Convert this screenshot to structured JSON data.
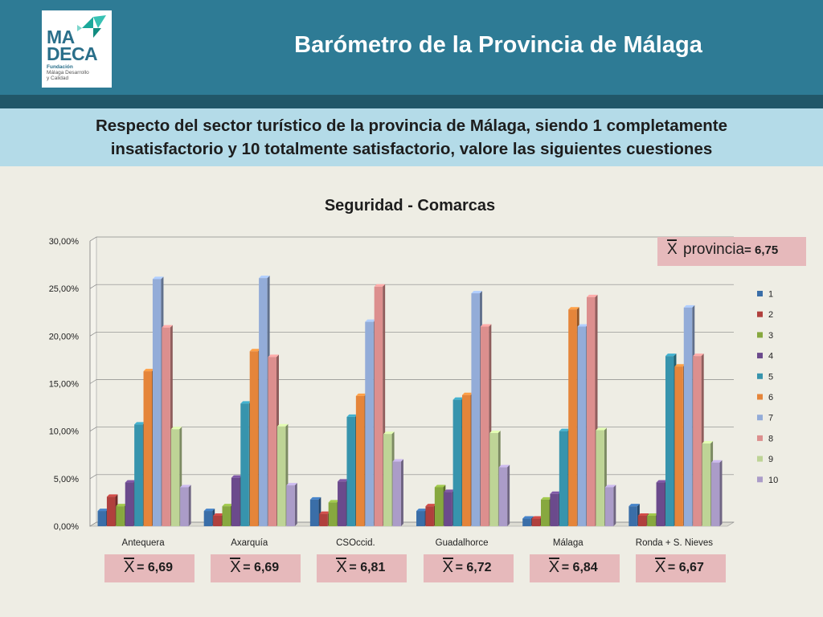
{
  "header": {
    "title": "Barómetro de la Provincia de Málaga",
    "logo": {
      "line1": "MA",
      "line2": "DECA",
      "org": "Fundación",
      "sub1": "Málaga Desarrollo",
      "sub2": "y Calidad"
    }
  },
  "question": {
    "line1": "Respecto del sector turístico de la provincia de Málaga, siendo 1 completamente",
    "line2": "insatisfactorio y 10 totalmente satisfactorio, valore las siguientes cuestiones"
  },
  "mean_symbol": "X",
  "province_mean": {
    "label": " provincia",
    "value": "= 6,75"
  },
  "colors": {
    "header": "#2e7b95",
    "strip": "#215769",
    "question_bg": "#b4dbe8",
    "page_bg": "#eeede4",
    "mean_bg": "#e6b9bb",
    "series": [
      "#3a6ea8",
      "#b0403d",
      "#87a83f",
      "#6b4a8c",
      "#3794ad",
      "#e5853a",
      "#93acd8",
      "#dc8f8e",
      "#bed496",
      "#ab9cc8"
    ]
  },
  "chart_data": {
    "type": "bar",
    "title": "Seguridad - Comarcas",
    "categories": [
      "Antequera",
      "Axarquía",
      "CSOccid.",
      "Guadalhorce",
      "Málaga",
      "Ronda + S. Nieves"
    ],
    "yticks": [
      "0,00%",
      "5,00%",
      "10,00%",
      "15,00%",
      "20,00%",
      "25,00%",
      "30,00%"
    ],
    "ylim": [
      0,
      30
    ],
    "grid": true,
    "legend_position": "right",
    "series": [
      {
        "name": "1",
        "values": [
          1.6,
          1.6,
          2.8,
          1.6,
          0.8,
          2.1
        ]
      },
      {
        "name": "2",
        "values": [
          3.1,
          1.1,
          1.3,
          2.1,
          0.8,
          1.1
        ]
      },
      {
        "name": "3",
        "values": [
          2.1,
          2.1,
          2.5,
          4.1,
          2.8,
          1.1
        ]
      },
      {
        "name": "4",
        "values": [
          4.6,
          5.1,
          4.7,
          3.6,
          3.4,
          4.6
        ]
      },
      {
        "name": "5",
        "values": [
          10.7,
          12.9,
          11.5,
          13.3,
          10.0,
          17.9
        ]
      },
      {
        "name": "6",
        "values": [
          16.3,
          18.4,
          13.7,
          13.8,
          22.8,
          16.8
        ]
      },
      {
        "name": "7",
        "values": [
          26.0,
          26.1,
          21.5,
          24.5,
          21.0,
          23.0
        ]
      },
      {
        "name": "8",
        "values": [
          20.9,
          17.8,
          25.2,
          21.0,
          24.1,
          17.9
        ]
      },
      {
        "name": "9",
        "values": [
          10.2,
          10.5,
          9.7,
          9.8,
          10.1,
          8.7
        ]
      },
      {
        "name": "10",
        "values": [
          4.1,
          4.3,
          6.8,
          6.2,
          4.1,
          6.7
        ]
      }
    ],
    "means": [
      "= 6,69",
      "= 6,69",
      "= 6,81",
      "= 6,72",
      "= 6,84",
      "= 6,67"
    ]
  }
}
